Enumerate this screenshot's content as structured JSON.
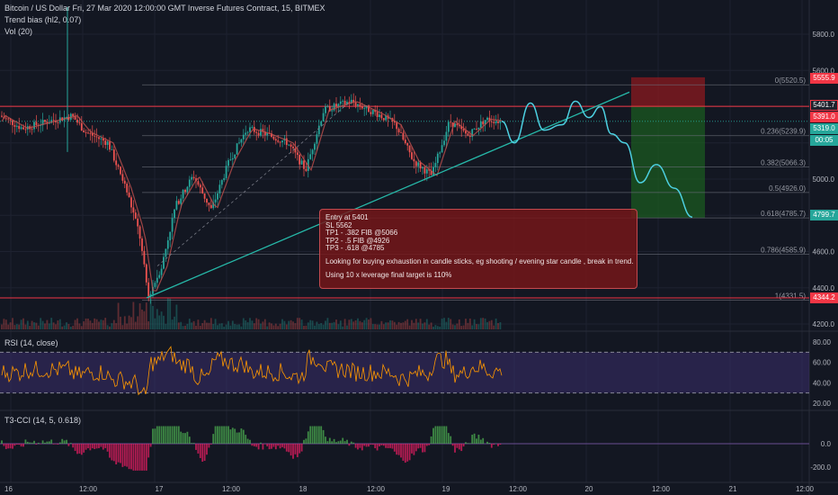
{
  "header": {
    "title": "Bitcoin / US Dollar Fri, 27 Mar 2020 12:00:00 GMT Inverse Futures Contract, 15, BITMEX",
    "indicator1": "Trend bias (hl2, 0.07)",
    "indicator2": "Vol (20)"
  },
  "rsi_label": "RSI (14, close)",
  "cci_label": "T3-CCI (14, 5, 0.618)",
  "price_axis": [
    "5800.0",
    "5600.0",
    "5400.0",
    "5200.0",
    "5000.0",
    "4800.0",
    "4600.0",
    "4400.0",
    "4200.0"
  ],
  "rsi_axis": [
    "80.00",
    "60.00",
    "40.00",
    "20.00"
  ],
  "cci_axis": [
    "0.0",
    "-200.0"
  ],
  "time_axis": [
    "16",
    "12:00",
    "17",
    "12:00",
    "18",
    "12:00",
    "19",
    "12:00",
    "20",
    "12:00",
    "21",
    "12:00"
  ],
  "price_tags": {
    "stop": "5555.9",
    "red_line": "5401.7",
    "last_red": "5391.0",
    "current": "5319.0",
    "countdown": "00:05",
    "target": "4799.7",
    "low": "4344.2"
  },
  "fib_levels": [
    {
      "label": "0(5520.5)",
      "price": 5520.5
    },
    {
      "label": "0.236(5239.9)",
      "price": 5239.9
    },
    {
      "label": "0.382(5066.3)",
      "price": 5066.3
    },
    {
      "label": "0.5(4926.0)",
      "price": 4926.0
    },
    {
      "label": "0.618(4785.7)",
      "price": 4785.7
    },
    {
      "label": "0.786(4585.9)",
      "price": 4585.9
    },
    {
      "label": "1(4331.5)",
      "price": 4331.5
    }
  ],
  "note": {
    "lines": [
      "Entry at 5401",
      "SL 5562",
      "TP1 - .382 FIB @5066",
      "TP2 - .5 FIB @4926",
      "TP3 - .618 @4785"
    ],
    "para1": "Looking for buying exhaustion in candle sticks, eg shooting / evening star candle , break in trend.",
    "para2": "Using 10 x leverage final target is 110%"
  },
  "colors": {
    "bg": "#131722",
    "up": "#26a69a",
    "down": "#ef5350",
    "projection": "#4dd0e1",
    "trendline": "#26b8a8",
    "stop_zone": "#8b1a1f",
    "target_zone": "#1b5e20",
    "rsi_fill": "#3a2e6b",
    "rsi_line": "#ff9800"
  },
  "chart_data": {
    "type": "candlestick",
    "symbol": "Bitcoin / US Dollar",
    "interval": "15",
    "price_axis": {
      "min": 4200,
      "max": 5800,
      "ticks": [
        4200,
        4400,
        4600,
        4800,
        5000,
        5200,
        5400,
        5600,
        5800
      ]
    },
    "rsi_axis": {
      "ticks": [
        20,
        40,
        60,
        80
      ]
    },
    "cci_axis": {
      "ticks": [
        -200,
        0
      ]
    },
    "price_path": [
      {
        "t": 0,
        "p": 5350
      },
      {
        "t": 25,
        "p": 5280
      },
      {
        "t": 55,
        "p": 5320
      },
      {
        "t": 80,
        "p": 5350
      },
      {
        "t": 95,
        "p": 5260
      },
      {
        "t": 120,
        "p": 5200
      },
      {
        "t": 140,
        "p": 4950
      },
      {
        "t": 155,
        "p": 4700
      },
      {
        "t": 165,
        "p": 4350
      },
      {
        "t": 180,
        "p": 4520
      },
      {
        "t": 195,
        "p": 4850
      },
      {
        "t": 215,
        "p": 5020
      },
      {
        "t": 235,
        "p": 4830
      },
      {
        "t": 255,
        "p": 5100
      },
      {
        "t": 275,
        "p": 5280
      },
      {
        "t": 295,
        "p": 5250
      },
      {
        "t": 320,
        "p": 5200
      },
      {
        "t": 340,
        "p": 5050
      },
      {
        "t": 360,
        "p": 5380
      },
      {
        "t": 390,
        "p": 5430
      },
      {
        "t": 420,
        "p": 5360
      },
      {
        "t": 440,
        "p": 5300
      },
      {
        "t": 460,
        "p": 5100
      },
      {
        "t": 480,
        "p": 5020
      },
      {
        "t": 500,
        "p": 5320
      },
      {
        "t": 520,
        "p": 5240
      },
      {
        "t": 540,
        "p": 5330
      },
      {
        "t": 558,
        "p": 5319
      }
    ],
    "projection": [
      {
        "t": 558,
        "p": 5319
      },
      {
        "t": 572,
        "p": 5200
      },
      {
        "t": 590,
        "p": 5420
      },
      {
        "t": 605,
        "p": 5270
      },
      {
        "t": 625,
        "p": 5300
      },
      {
        "t": 640,
        "p": 5430
      },
      {
        "t": 655,
        "p": 5340
      },
      {
        "t": 668,
        "p": 5400
      },
      {
        "t": 680,
        "p": 5250
      },
      {
        "t": 695,
        "p": 5200
      },
      {
        "t": 712,
        "p": 4980
      },
      {
        "t": 730,
        "p": 5080
      },
      {
        "t": 750,
        "p": 4950
      },
      {
        "t": 770,
        "p": 4790
      }
    ],
    "trendline": {
      "from": {
        "t": 163,
        "p": 4344
      },
      "to": {
        "t": 700,
        "p": 5480
      }
    },
    "position": {
      "entry": 5401,
      "stop": 5562,
      "target": 4785
    }
  }
}
